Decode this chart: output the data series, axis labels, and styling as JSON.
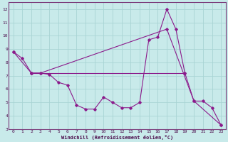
{
  "xlabel": "Windchill (Refroidissement éolien,°C)",
  "bg_color": "#c8eaea",
  "grid_color": "#a8d4d4",
  "line_color": "#8b1a8b",
  "spine_color": "#7a3a7a",
  "tick_color": "#4a0a4a",
  "xlim": [
    -0.5,
    23.5
  ],
  "ylim": [
    3,
    12.5
  ],
  "xticks": [
    0,
    1,
    2,
    3,
    4,
    5,
    6,
    7,
    8,
    9,
    10,
    11,
    12,
    13,
    14,
    15,
    16,
    17,
    18,
    19,
    20,
    21,
    22,
    23
  ],
  "yticks": [
    3,
    4,
    5,
    6,
    7,
    8,
    9,
    10,
    11,
    12
  ],
  "line1_x": [
    0,
    1,
    2,
    3,
    4,
    5,
    6,
    7,
    8,
    9,
    10,
    11,
    12,
    13,
    14,
    15,
    16,
    17,
    18,
    19,
    20,
    21,
    22,
    23
  ],
  "line1_y": [
    8.8,
    8.3,
    7.2,
    7.2,
    7.1,
    6.5,
    6.3,
    4.8,
    4.5,
    4.5,
    5.4,
    5.0,
    4.6,
    4.6,
    5.0,
    9.7,
    9.9,
    12.0,
    10.5,
    7.2,
    5.1,
    5.1,
    4.6,
    3.3
  ],
  "line2_x": [
    0,
    2,
    3,
    17,
    20,
    23
  ],
  "line2_y": [
    8.8,
    7.2,
    7.2,
    10.5,
    5.1,
    3.3
  ],
  "line3_x": [
    2,
    19
  ],
  "line3_y": [
    7.2,
    7.2
  ],
  "tick_fontsize": 4.5,
  "xlabel_fontsize": 5.0
}
